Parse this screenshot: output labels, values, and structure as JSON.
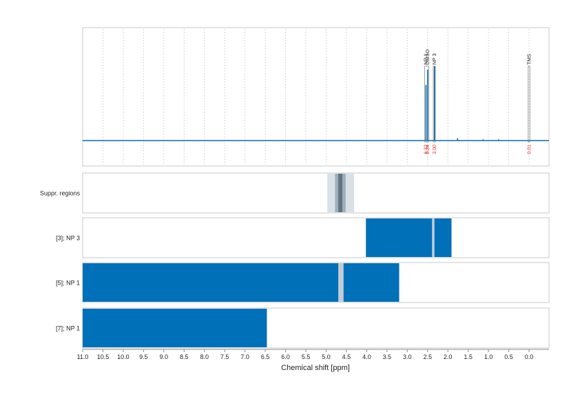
{
  "chart_data": {
    "type": "line",
    "xlabel": "Chemical shift [ppm]",
    "xlim": [
      11.0,
      -0.5
    ],
    "x_ticks": [
      "11.0",
      "10.5",
      "10.0",
      "9.5",
      "9.0",
      "8.5",
      "8.0",
      "7.5",
      "7.0",
      "6.5",
      "6.0",
      "5.5",
      "5.0",
      "4.5",
      "4.0",
      "3.5",
      "3.0",
      "2.5",
      "2.0",
      "1.5",
      "1.0",
      "0.5",
      "0.0"
    ],
    "grid": true,
    "spectrum": {
      "baseline": 0,
      "peaks": [
        {
          "x": 2.54,
          "height": 0.72
        },
        {
          "x": 2.5,
          "height": 0.92
        },
        {
          "x": 2.33,
          "height": 0.96
        },
        {
          "x": 1.76,
          "height": 0.03
        },
        {
          "x": 1.13,
          "height": 0.015
        },
        {
          "x": 0.75,
          "height": 0.015
        }
      ],
      "annotations": [
        {
          "label": "DMSO",
          "x": 2.5,
          "integral": "6.24"
        },
        {
          "label": "NP 3",
          "x": 2.33,
          "integral": "3.00"
        },
        {
          "label": "NP 1",
          "x": 2.55,
          "integral": "6.32"
        },
        {
          "label": "TMS",
          "x": 0.0,
          "integral": "0.01"
        }
      ]
    },
    "tracks": [
      {
        "label": "Suppr. regions",
        "regions": [
          {
            "from": 4.97,
            "to": 4.31,
            "shade": "light"
          },
          {
            "from": 4.78,
            "to": 4.52,
            "shade": "mid"
          },
          {
            "from": 4.7,
            "to": 4.6,
            "shade": "dark"
          }
        ]
      },
      {
        "label": "[3]; NP 3",
        "regions": [
          {
            "from": 4.02,
            "to": 1.91,
            "shade": "blue"
          },
          {
            "from": 2.39,
            "to": 2.33,
            "shade": "gap"
          }
        ]
      },
      {
        "label": "[5]; NP 1",
        "regions": [
          {
            "from": 11.0,
            "to": 3.2,
            "shade": "blue"
          },
          {
            "from": 4.7,
            "to": 4.57,
            "shade": "gap"
          }
        ]
      },
      {
        "label": "[7]; NP 1",
        "regions": [
          {
            "from": 11.0,
            "to": 6.46,
            "shade": "blue"
          }
        ]
      }
    ],
    "colors": {
      "spectrum": "#0b6aa8",
      "bar": "#0070b8",
      "integral": "#e8292b",
      "gap": "#c2ccd4",
      "light": "#d9e0e6",
      "mid": "#9fb0bb",
      "dark": "#627582",
      "frame": "#c8c8c8",
      "grid": "#cfcfcf"
    }
  }
}
